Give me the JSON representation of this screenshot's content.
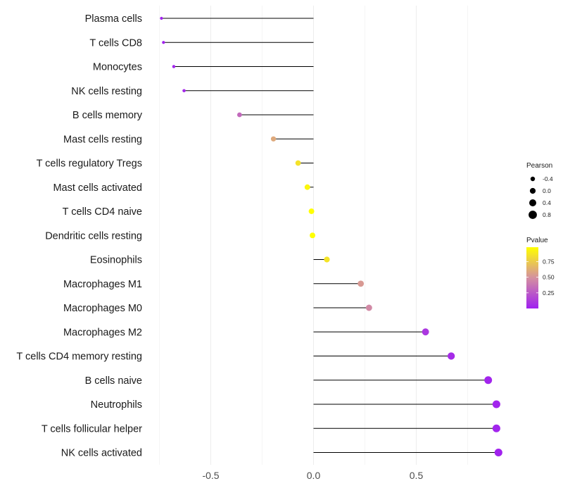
{
  "chart_data": {
    "type": "scatter",
    "style": "lollipop",
    "title": "",
    "xlabel": "",
    "ylabel": "",
    "xlim": [
      -0.8,
      0.93
    ],
    "xticks": [
      -0.5,
      0.0,
      0.5
    ],
    "xtick_labels": [
      "-0.5",
      "0.0",
      "0.5"
    ],
    "grid": true,
    "points": [
      {
        "label": "Plasma cells",
        "pearson": -0.74,
        "pvalue": 0.01
      },
      {
        "label": "T cells CD8",
        "pearson": -0.73,
        "pvalue": 0.01
      },
      {
        "label": "Monocytes",
        "pearson": -0.68,
        "pvalue": 0.02
      },
      {
        "label": "NK cells resting",
        "pearson": -0.63,
        "pvalue": 0.04
      },
      {
        "label": "B cells memory",
        "pearson": -0.36,
        "pvalue": 0.32
      },
      {
        "label": "Mast cells resting",
        "pearson": -0.195,
        "pvalue": 0.6
      },
      {
        "label": "T cells regulatory  Tregs",
        "pearson": -0.075,
        "pvalue": 0.85
      },
      {
        "label": "Mast cells activated",
        "pearson": -0.03,
        "pvalue": 0.94
      },
      {
        "label": "T cells CD4 naive",
        "pearson": -0.01,
        "pvalue": 0.98
      },
      {
        "label": "Dendritic cells resting",
        "pearson": -0.005,
        "pvalue": 0.99
      },
      {
        "label": "Eosinophils",
        "pearson": 0.065,
        "pvalue": 0.86
      },
      {
        "label": "Macrophages M1",
        "pearson": 0.23,
        "pvalue": 0.53
      },
      {
        "label": "Macrophages M0",
        "pearson": 0.27,
        "pvalue": 0.46
      },
      {
        "label": "Macrophages M2",
        "pearson": 0.545,
        "pvalue": 0.1
      },
      {
        "label": "T cells CD4 memory resting",
        "pearson": 0.67,
        "pvalue": 0.05
      },
      {
        "label": "B cells naive",
        "pearson": 0.85,
        "pvalue": 0.02
      },
      {
        "label": "Neutrophils",
        "pearson": 0.89,
        "pvalue": 0.02
      },
      {
        "label": "T cells follicular helper",
        "pearson": 0.89,
        "pvalue": 0.02
      },
      {
        "label": "NK cells activated",
        "pearson": 0.9,
        "pvalue": 0.01
      }
    ],
    "legend_size": {
      "title": "Pearson",
      "entries": [
        {
          "label": "-0.4",
          "value": -0.4
        },
        {
          "label": "0.0",
          "value": 0.0
        },
        {
          "label": "0.4",
          "value": 0.4
        },
        {
          "label": "0.8",
          "value": 0.8
        }
      ]
    },
    "legend_color": {
      "title": "Pvalue",
      "range": [
        0.0,
        0.98
      ],
      "ticks": [
        {
          "label": "0.75",
          "value": 0.75
        },
        {
          "label": "0.50",
          "value": 0.5
        },
        {
          "label": "0.25",
          "value": 0.25
        }
      ],
      "color_low": "#a020f0",
      "color_mid": "#d490a0",
      "color_high": "#ffff00"
    },
    "legend_position": "right",
    "colors": {
      "stem": "#000000",
      "grid": "#ebebeb",
      "text": "#1a1a1a",
      "tick_text": "#4d4d4d"
    }
  }
}
